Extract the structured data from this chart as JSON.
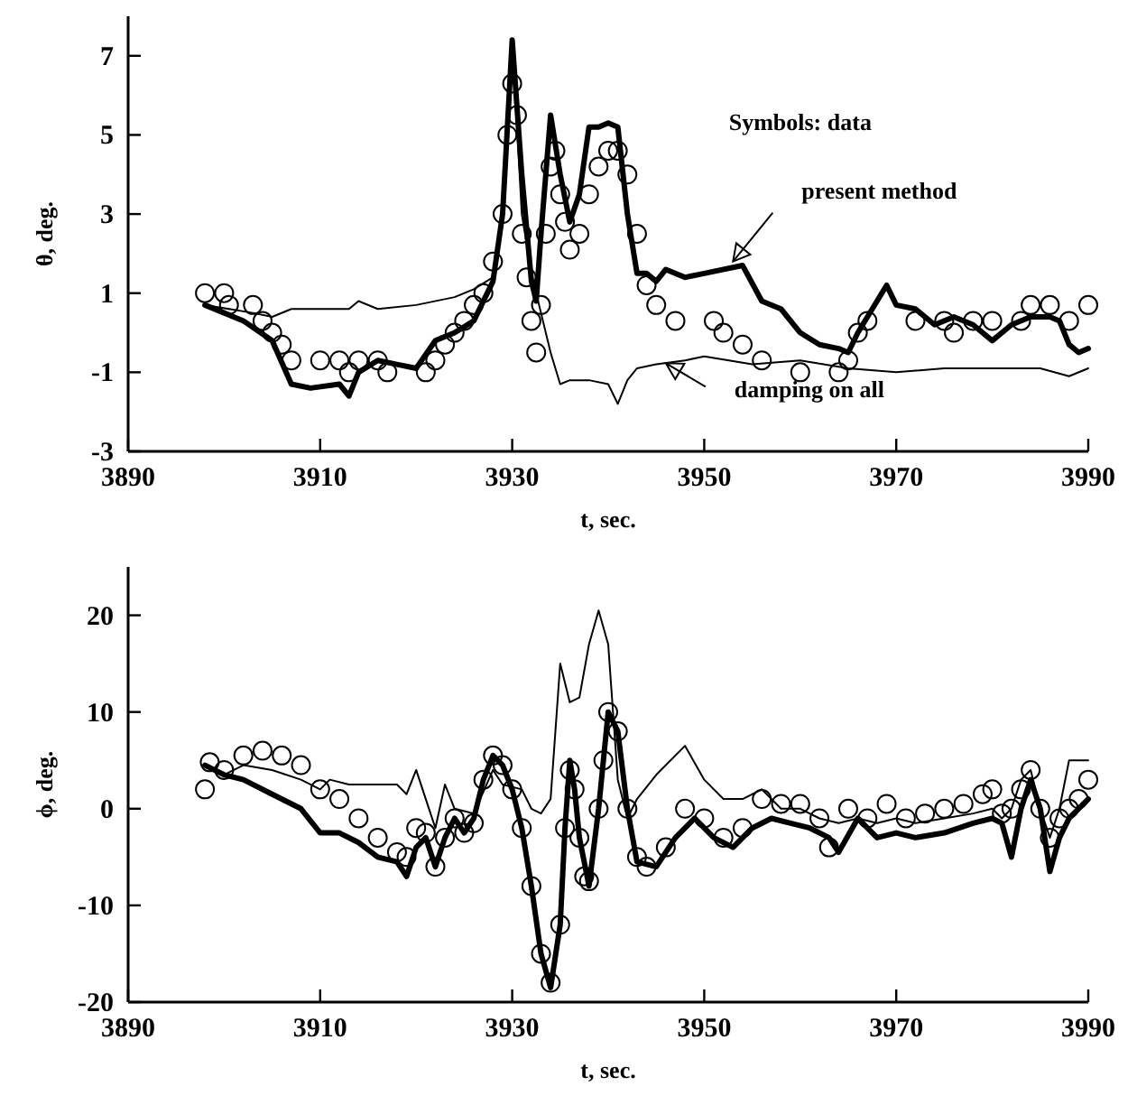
{
  "chart_data": [
    {
      "type": "line",
      "xlabel": "t, sec.",
      "ylabel": "θ, deg.",
      "xlim": [
        3890,
        3990
      ],
      "xticks": [
        3890,
        3910,
        3930,
        3950,
        3970,
        3990
      ],
      "ylim": [
        -3,
        8
      ],
      "yticks": [
        -3,
        -1,
        1,
        3,
        5,
        7
      ],
      "annotations": [
        "Symbols: data",
        {
          "text": "present method",
          "x": 3953,
          "y": 1.8
        },
        {
          "text": "damping on all",
          "x": 3946,
          "y": -0.77
        }
      ],
      "series": [
        {
          "type": "scatter",
          "marker": "circle",
          "color": "#000000",
          "x": [
            3898,
            3900,
            3900.5,
            3903,
            3904,
            3905,
            3906,
            3907,
            3910,
            3912,
            3913,
            3914,
            3916,
            3917,
            3921,
            3922,
            3923,
            3924,
            3925,
            3926,
            3927,
            3928,
            3929,
            3929.5,
            3930,
            3930.5,
            3931,
            3931.5,
            3932,
            3932.5,
            3933,
            3933.5,
            3934,
            3934.5,
            3935,
            3935.5,
            3936,
            3937,
            3938,
            3939,
            3940,
            3941,
            3942,
            3943,
            3944,
            3945,
            3947,
            3951,
            3952,
            3954,
            3956,
            3960,
            3964,
            3965,
            3966,
            3967,
            3972,
            3975,
            3976,
            3978,
            3980,
            3983,
            3984,
            3986,
            3988,
            3990
          ],
          "values": [
            1,
            1,
            0.7,
            0.7,
            0.3,
            0,
            -0.3,
            -0.7,
            -0.7,
            -0.7,
            -1,
            -0.7,
            -0.7,
            -1,
            -1,
            -0.7,
            -0.3,
            0,
            0.3,
            0.7,
            1,
            1.8,
            3,
            5,
            6.3,
            5.5,
            2.5,
            1.4,
            0.3,
            -0.5,
            0.7,
            2.5,
            4.2,
            4.6,
            3.5,
            2.8,
            2.1,
            2.5,
            3.5,
            4.2,
            4.6,
            4.6,
            4,
            2.5,
            1.2,
            0.7,
            0.3,
            0.3,
            0,
            -0.3,
            -0.7,
            -1,
            -1,
            -0.7,
            0,
            0.3,
            0.3,
            0.3,
            0,
            0.3,
            0.3,
            0.3,
            0.7,
            0.7,
            0.3,
            0.7
          ]
        },
        {
          "type": "line",
          "marker": "none",
          "line_style": "solid",
          "color": "#000000",
          "x": [
            3898,
            3900,
            3902,
            3905,
            3907,
            3909,
            3912,
            3913,
            3914,
            3916,
            3918,
            3920,
            3922,
            3924,
            3926,
            3928,
            3929,
            3930,
            3931,
            3932,
            3932.5,
            3933,
            3934,
            3935,
            3936,
            3937,
            3938,
            3939,
            3940,
            3941,
            3942,
            3943,
            3944,
            3945,
            3946,
            3948,
            3950,
            3954,
            3956,
            3958,
            3960,
            3962,
            3964,
            3965,
            3966,
            3968,
            3969,
            3970,
            3972,
            3974,
            3976,
            3978,
            3980,
            3982,
            3984,
            3986,
            3987,
            3988,
            3989,
            3990
          ],
          "values": [
            0.7,
            0.5,
            0.3,
            -0.2,
            -1.3,
            -1.4,
            -1.3,
            -1.6,
            -1,
            -0.7,
            -0.8,
            -0.9,
            -0.2,
            0,
            0.3,
            1.3,
            3,
            7.4,
            4,
            1.3,
            0.8,
            2.5,
            5.5,
            4,
            2.8,
            3.5,
            5.2,
            5.2,
            5.3,
            5.2,
            3,
            1.5,
            1.5,
            1.3,
            1.6,
            1.4,
            1.5,
            1.7,
            0.8,
            0.6,
            0,
            -0.3,
            -0.4,
            -0.5,
            0,
            0.8,
            1.2,
            0.7,
            0.6,
            0.2,
            0.4,
            0.2,
            -0.2,
            0.2,
            0.4,
            0.4,
            0.3,
            -0.3,
            -0.5,
            -0.4
          ]
        },
        {
          "type": "line",
          "marker": "none",
          "line_style": "solid",
          "color": "#000000",
          "x": [
            3898,
            3903,
            3905,
            3907,
            3910,
            3913,
            3914,
            3916,
            3920,
            3924,
            3926,
            3928,
            3929,
            3930,
            3931,
            3932,
            3933,
            3934,
            3935,
            3936,
            3938,
            3940,
            3941,
            3942,
            3943,
            3945,
            3948,
            3950,
            3955,
            3960,
            3965,
            3970,
            3975,
            3980,
            3985,
            3988,
            3990
          ],
          "values": [
            0.7,
            0.5,
            0.4,
            0.6,
            0.6,
            0.6,
            0.8,
            0.6,
            0.7,
            0.9,
            1.1,
            1.4,
            3,
            7.4,
            3,
            1.5,
            0.5,
            -0.5,
            -1.3,
            -1.2,
            -1.2,
            -1.3,
            -1.8,
            -1.2,
            -0.9,
            -0.8,
            -0.7,
            -0.6,
            -0.8,
            -0.7,
            -0.9,
            -1,
            -0.9,
            -0.9,
            -0.9,
            -1.1,
            -0.9
          ]
        }
      ]
    },
    {
      "type": "line",
      "xlabel": "t, sec.",
      "ylabel": "ϕ, deg.",
      "xlim": [
        3890,
        3990
      ],
      "xticks": [
        3890,
        3910,
        3930,
        3950,
        3970,
        3990
      ],
      "ylim": [
        -20,
        25
      ],
      "yticks": [
        -20,
        -10,
        0,
        10,
        20
      ],
      "series": [
        {
          "type": "scatter",
          "marker": "circle",
          "color": "#000000",
          "x": [
            3898,
            3898.5,
            3900,
            3902,
            3904,
            3906,
            3908,
            3910,
            3912,
            3914,
            3916,
            3918,
            3919,
            3920,
            3921,
            3922,
            3923,
            3924,
            3925,
            3926,
            3927,
            3928,
            3929,
            3930,
            3931,
            3932,
            3933,
            3934,
            3935,
            3935.5,
            3936,
            3936.5,
            3937,
            3937.5,
            3938,
            3939,
            3939.5,
            3940,
            3941,
            3942,
            3943,
            3944,
            3946,
            3948,
            3950,
            3952,
            3954,
            3956,
            3958,
            3960,
            3962,
            3963,
            3965,
            3967,
            3969,
            3971,
            3973,
            3975,
            3977,
            3979,
            3980,
            3981,
            3982,
            3983,
            3984,
            3985,
            3986,
            3987,
            3988,
            3989,
            3990
          ],
          "values": [
            2,
            4.8,
            4,
            5.5,
            6,
            5.5,
            4.5,
            2,
            1,
            -1,
            -3,
            -4.5,
            -5,
            -2,
            -2.5,
            -6,
            -3,
            -1,
            -2.5,
            -1.5,
            3,
            5.5,
            4.5,
            2,
            -2,
            -8,
            -15,
            -18,
            -12,
            -2,
            4,
            2,
            -3,
            -7,
            -7.5,
            0,
            5,
            10,
            8,
            0,
            -5,
            -6,
            -4,
            0,
            -1,
            -3,
            -2,
            1,
            0.5,
            0.5,
            -1,
            -4,
            0,
            -1,
            0.5,
            -1,
            -0.5,
            0,
            0.5,
            1.5,
            2,
            -0.5,
            0,
            2,
            4,
            0,
            -3,
            -1,
            0,
            1,
            3
          ]
        },
        {
          "type": "line",
          "marker": "none",
          "line_style": "solid",
          "color": "#000000",
          "x": [
            3898,
            3900,
            3902,
            3905,
            3908,
            3910,
            3912,
            3914,
            3916,
            3918,
            3919,
            3920,
            3921,
            3922,
            3923,
            3924,
            3925,
            3926,
            3927,
            3928,
            3929,
            3930,
            3931,
            3932,
            3933,
            3934,
            3935,
            3935.5,
            3936,
            3936.5,
            3937,
            3938,
            3939,
            3940,
            3941,
            3942,
            3943,
            3945,
            3947,
            3949,
            3951,
            3953,
            3955,
            3957,
            3959,
            3961,
            3963,
            3964,
            3966,
            3968,
            3970,
            3972,
            3975,
            3978,
            3980,
            3981,
            3982,
            3983,
            3984,
            3985,
            3986,
            3987,
            3988,
            3990
          ],
          "values": [
            4.5,
            3.5,
            3,
            1.5,
            0,
            -2.5,
            -2.5,
            -3.5,
            -5,
            -5.5,
            -7,
            -4,
            -3,
            -6,
            -3,
            -1,
            -2.5,
            -1,
            3,
            5.5,
            4.5,
            2,
            -2,
            -8,
            -15,
            -18.5,
            -12,
            -2,
            5,
            2,
            -3,
            -8,
            0,
            10,
            8,
            0,
            -5.5,
            -6,
            -3,
            -1,
            -3,
            -4,
            -2,
            -1,
            -1.5,
            -2,
            -3,
            -4.5,
            -1,
            -3,
            -2.5,
            -3,
            -2.5,
            -1.5,
            -1,
            -1.5,
            -5,
            0,
            3,
            0,
            -6.5,
            -3,
            -1,
            1
          ]
        },
        {
          "type": "line",
          "marker": "none",
          "line_style": "solid",
          "color": "#000000",
          "x": [
            3898,
            3900,
            3902,
            3905,
            3908,
            3910,
            3911,
            3913,
            3916,
            3918,
            3919,
            3920,
            3921,
            3922,
            3923,
            3924,
            3926,
            3928,
            3929,
            3931,
            3932,
            3933,
            3934,
            3935,
            3936,
            3937,
            3938,
            3939,
            3940,
            3941,
            3942,
            3943,
            3945,
            3948,
            3950,
            3952,
            3954,
            3956,
            3958,
            3960,
            3962,
            3964,
            3966,
            3968,
            3970,
            3972,
            3975,
            3978,
            3980,
            3981,
            3982,
            3983,
            3984,
            3985,
            3986,
            3987,
            3988,
            3990
          ],
          "values": [
            4.5,
            3.5,
            4.5,
            4,
            3,
            2,
            3,
            2.5,
            2.5,
            2.5,
            1.5,
            4,
            1,
            -2,
            2.5,
            0,
            -0.5,
            4,
            2.5,
            2,
            0,
            -0.5,
            1,
            15,
            11,
            11.5,
            17,
            20.5,
            17,
            3,
            -1,
            1,
            3.5,
            6.5,
            3,
            1,
            1,
            2,
            0,
            0,
            -1,
            -1.5,
            -1,
            -1.5,
            -1,
            -1.5,
            -1,
            -0.5,
            0,
            -1,
            0,
            3,
            4,
            0,
            -3,
            0,
            5,
            5
          ]
        }
      ]
    }
  ]
}
